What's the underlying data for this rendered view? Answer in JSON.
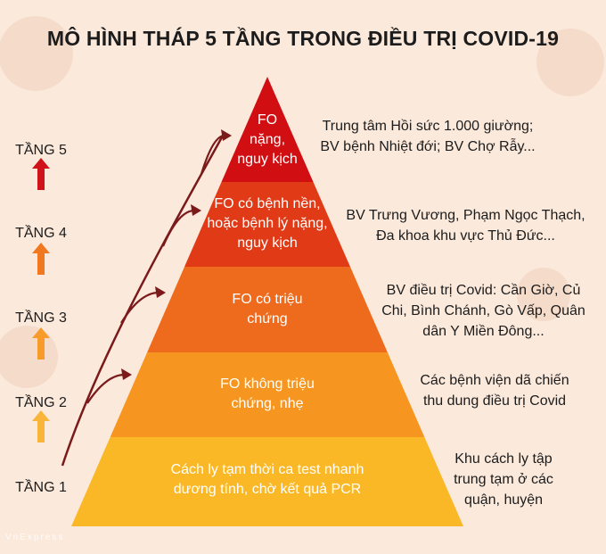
{
  "title": "MÔ HÌNH THÁP 5 TẦNG TRONG ĐIỀU TRỊ COVID-19",
  "tiers": [
    "TẦNG 5",
    "TẦNG 4",
    "TẦNG 3",
    "TẦNG 2",
    "TẦNG 1"
  ],
  "levels": [
    {
      "lines": [
        "FO",
        "nặng,",
        "nguy kịch"
      ],
      "color": "#d10e12"
    },
    {
      "lines": [
        "FO có bệnh nền,",
        "hoặc bệnh lý nặng,",
        "nguy kịch"
      ],
      "color": "#e03a16"
    },
    {
      "lines": [
        "FO có triệu",
        "chứng"
      ],
      "color": "#ee6a1c"
    },
    {
      "lines": [
        "FO không triệu",
        "chứng, nhẹ"
      ],
      "color": "#f69620"
    },
    {
      "lines": [
        "Cách ly tạm thời ca test nhanh",
        "dương tính, chờ kết quả PCR"
      ],
      "color": "#fab826"
    }
  ],
  "facilities": [
    [
      "Trung tâm Hồi sức 1.000 giường;",
      "BV bệnh Nhiệt đới; BV Chợ Rẫy..."
    ],
    [
      "BV Trưng Vương, Phạm Ngọc Thạch,",
      "Đa khoa khu vực Thủ Đức..."
    ],
    [
      "BV điều trị Covid: Cần Giờ, Củ",
      "Chi, Bình Chánh, Gò Vấp, Quân",
      "dân Y Miền Đông..."
    ],
    [
      "Các bệnh viện dã chiến",
      "thu dung điều trị Covid"
    ],
    [
      "Khu cách ly tập",
      "trung tạm ở các",
      "quận, huyện"
    ]
  ],
  "colors": {
    "background": "#fbe9dc",
    "connector": "#7a1a1a",
    "arrows": [
      "#d0121a",
      "#f07820",
      "#f79c2a",
      "#f9b43a"
    ]
  },
  "watermark": "VnExpress"
}
